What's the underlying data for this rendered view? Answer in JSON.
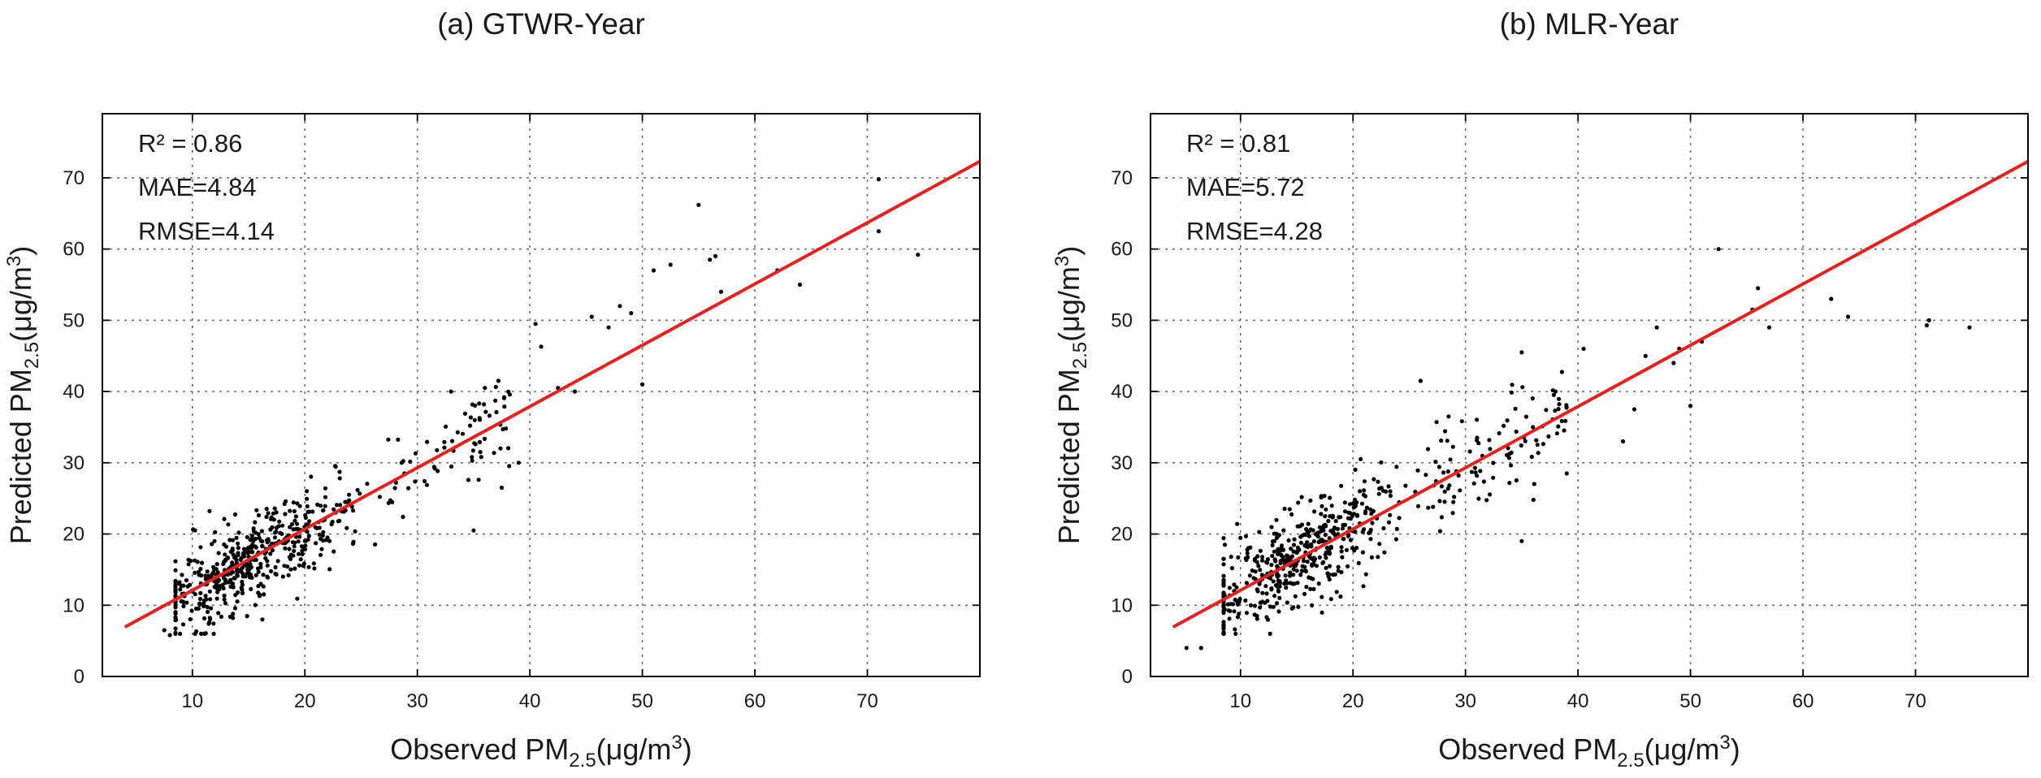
{
  "chart_data": [
    {
      "type": "scatter",
      "title": "(a) GTWR-Year",
      "xlabel": {
        "main": "Observed PM",
        "sub": "2.5",
        "rest": "(μg/m",
        "sup": "3",
        "close": ")"
      },
      "ylabel": {
        "main": "Predicted PM",
        "sub": "2.5",
        "rest": "(μg/m",
        "sup": "3",
        "close": ")"
      },
      "xlim": [
        2,
        80
      ],
      "ylim": [
        0,
        79
      ],
      "xticks": [
        10,
        20,
        30,
        40,
        50,
        60,
        70
      ],
      "yticks": [
        0,
        10,
        20,
        30,
        40,
        50,
        60,
        70
      ],
      "grid": true,
      "stats": [
        "R² = 0.86",
        "MAE=4.84",
        "RMSE=4.14"
      ],
      "fit_line": {
        "slope": 0.86,
        "intercept": 3.5,
        "x_range": [
          4,
          80
        ],
        "color": "#e8201e"
      },
      "scatter": {
        "seed": 7,
        "n_cluster": 560,
        "noise": 3.0,
        "extras": [
          [
            40.5,
            49.5
          ],
          [
            41.0,
            46.3
          ],
          [
            44.0,
            40.0
          ],
          [
            45.5,
            50.5
          ],
          [
            47.0,
            49.0
          ],
          [
            48.0,
            52.0
          ],
          [
            49.0,
            51.0
          ],
          [
            50.0,
            41.0
          ],
          [
            51.0,
            57.0
          ],
          [
            52.5,
            57.8
          ],
          [
            55.0,
            66.2
          ],
          [
            56.0,
            58.5
          ],
          [
            56.5,
            59.0
          ],
          [
            57.0,
            54.0
          ],
          [
            62.0,
            57.0
          ],
          [
            64.0,
            55.0
          ],
          [
            71.0,
            62.5
          ],
          [
            71.0,
            69.8
          ],
          [
            74.5,
            59.2
          ],
          [
            35.0,
            20.5
          ],
          [
            37.5,
            26.5
          ],
          [
            33.0,
            40.0
          ],
          [
            36.0,
            40.5
          ],
          [
            42.5,
            40.5
          ],
          [
            39.0,
            30.0
          ],
          [
            8.0,
            5.8
          ],
          [
            7.5,
            6.5
          ]
        ]
      }
    },
    {
      "type": "scatter",
      "title": "(b) MLR-Year",
      "xlabel": {
        "main": "Observed PM",
        "sub": "2.5",
        "rest": "(μg/m",
        "sup": "3",
        "close": ")"
      },
      "ylabel": {
        "main": "Predicted PM",
        "sub": "2.5",
        "rest": "(μg/m",
        "sup": "3",
        "close": ")"
      },
      "xlim": [
        2,
        80
      ],
      "ylim": [
        0,
        79
      ],
      "xticks": [
        10,
        20,
        30,
        40,
        50,
        60,
        70
      ],
      "yticks": [
        0,
        10,
        20,
        30,
        40,
        50,
        60,
        70
      ],
      "grid": true,
      "stats": [
        "R² = 0.81",
        "MAE=5.72",
        "RMSE=4.28"
      ],
      "fit_line": {
        "slope": 0.86,
        "intercept": 3.5,
        "x_range": [
          4,
          80
        ],
        "color": "#e8201e"
      },
      "scatter": {
        "seed": 23,
        "n_cluster": 560,
        "noise": 3.3,
        "extras": [
          [
            46.0,
            45.0
          ],
          [
            47.0,
            49.0
          ],
          [
            48.5,
            44.0
          ],
          [
            49.0,
            46.0
          ],
          [
            50.0,
            38.0
          ],
          [
            51.0,
            47.0
          ],
          [
            52.5,
            60.0
          ],
          [
            55.5,
            51.5
          ],
          [
            56.0,
            54.5
          ],
          [
            57.0,
            49.0
          ],
          [
            62.5,
            53.0
          ],
          [
            64.0,
            50.5
          ],
          [
            71.0,
            49.3
          ],
          [
            71.2,
            50.0
          ],
          [
            74.8,
            49.0
          ],
          [
            35.0,
            19.0
          ],
          [
            35.0,
            45.5
          ],
          [
            39.0,
            28.5
          ],
          [
            38.0,
            40.0
          ],
          [
            40.5,
            46.0
          ],
          [
            44.0,
            33.0
          ],
          [
            45.0,
            37.5
          ],
          [
            5.2,
            4.0
          ],
          [
            6.5,
            4.0
          ],
          [
            26.0,
            41.5
          ],
          [
            28.5,
            36.5
          ]
        ]
      }
    }
  ]
}
